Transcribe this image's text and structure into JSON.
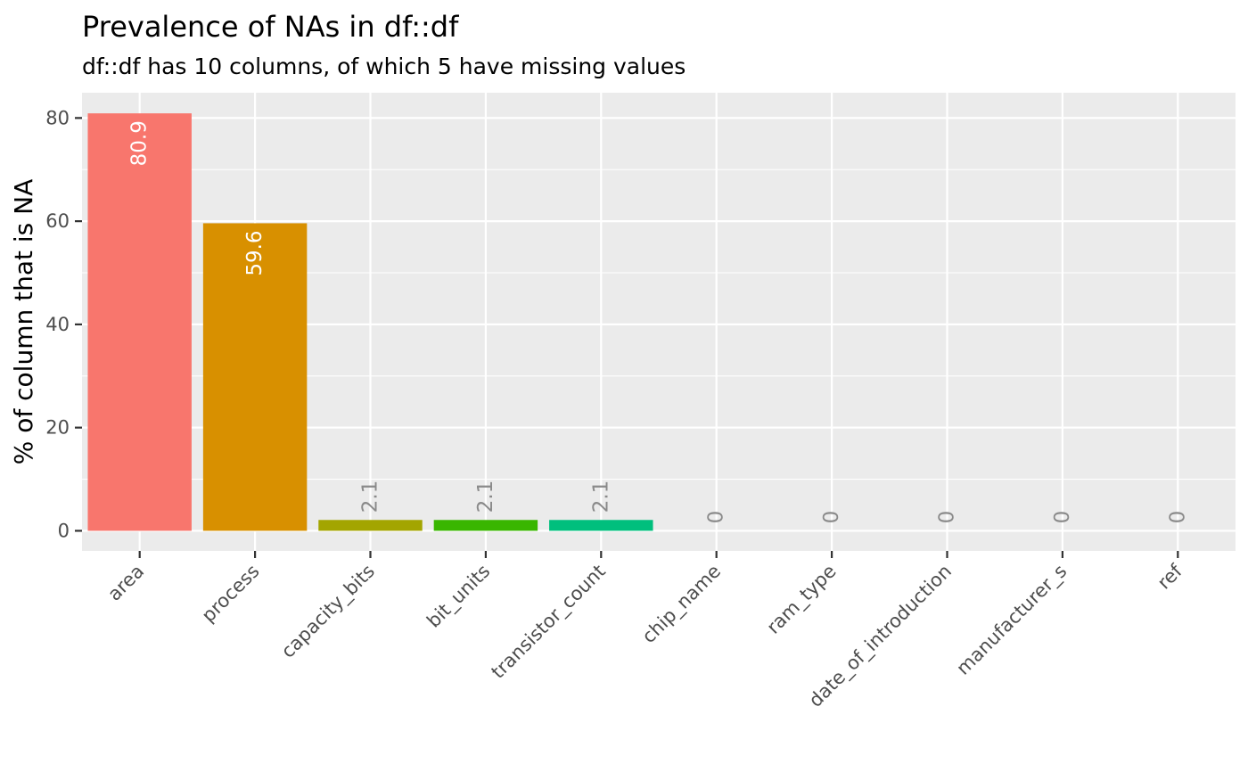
{
  "chart_data": {
    "type": "bar",
    "title": "Prevalence of NAs in df::df",
    "subtitle": "df::df has 10 columns, of which 5 have missing values",
    "xlabel": "",
    "ylabel": "% of column that is NA",
    "categories": [
      "area",
      "process",
      "capacity_bits",
      "bit_units",
      "transistor_count",
      "chip_name",
      "ram_type",
      "date_of_introduction",
      "manufacturer_s",
      "ref"
    ],
    "values": [
      80.9,
      59.6,
      2.1,
      2.1,
      2.1,
      0,
      0,
      0,
      0,
      0
    ],
    "value_labels": [
      "80.9",
      "59.6",
      "2.1",
      "2.1",
      "2.1",
      "0",
      "0",
      "0",
      "0",
      "0"
    ],
    "colors": [
      "#F8766D",
      "#D89000",
      "#A3A500",
      "#39B600",
      "#00BF7D",
      "#00BFC4",
      "#00B0F6",
      "#9590FF",
      "#E76BF3",
      "#FF62BC"
    ],
    "yticks": [
      0,
      20,
      40,
      60,
      80
    ],
    "ylim": [
      -3.9,
      84.9
    ],
    "grid": true,
    "legend": "none",
    "panel_background": "#EBEBEB",
    "grid_color": "#FFFFFF"
  }
}
